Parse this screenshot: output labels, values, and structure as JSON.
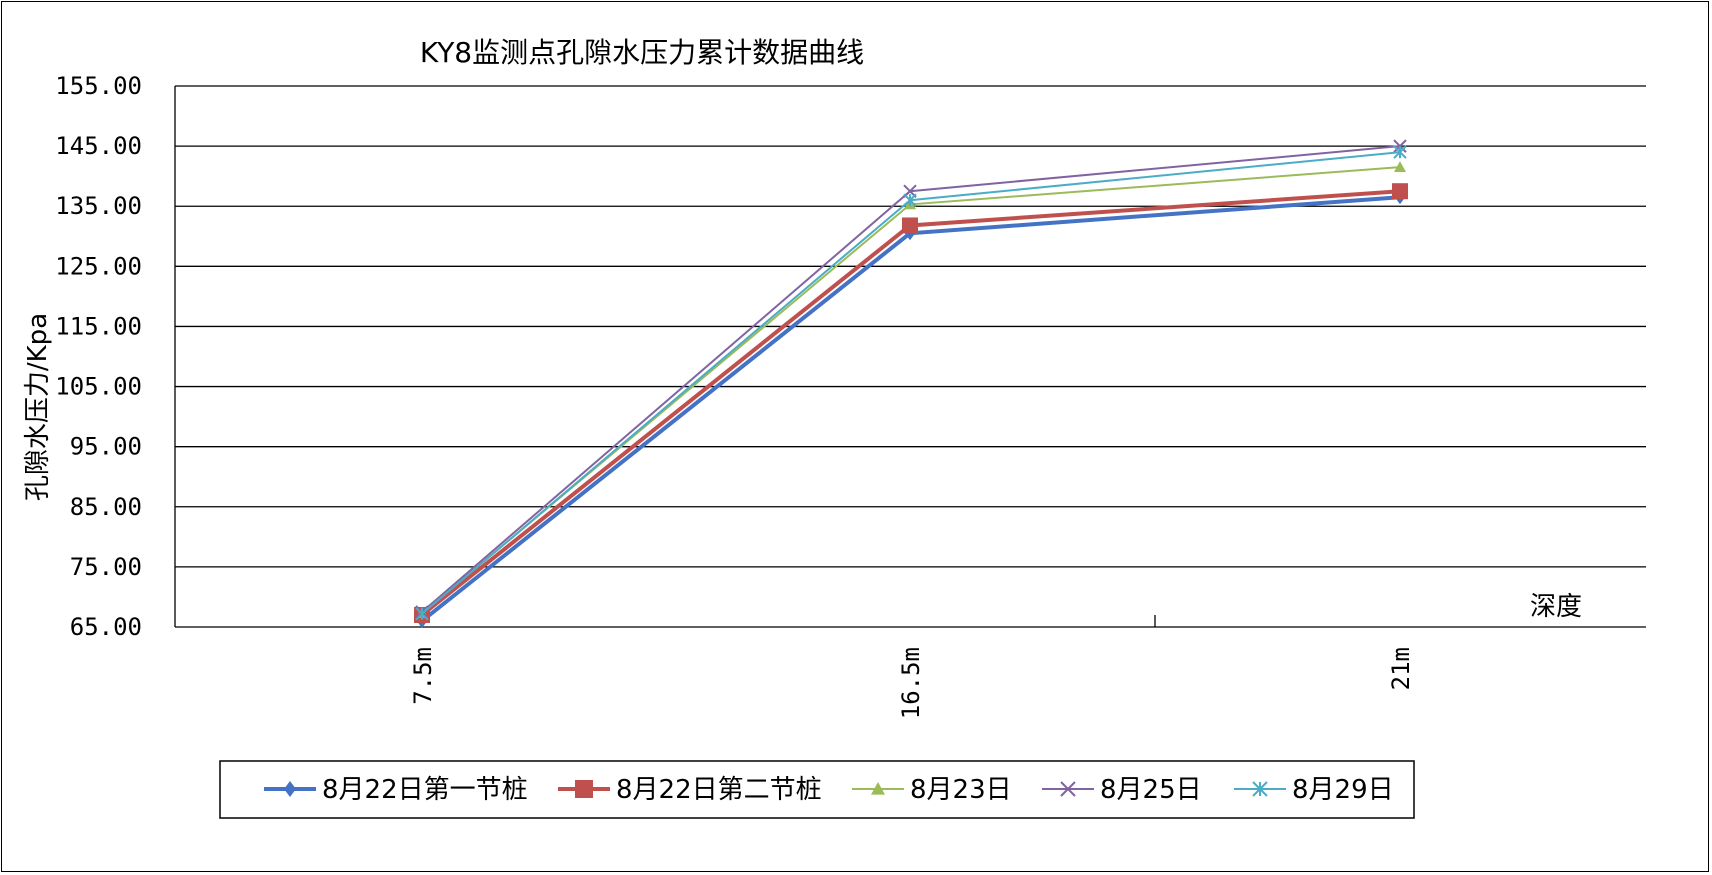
{
  "chart_data": {
    "type": "line",
    "title": "KY8监测点孔隙水压力累计数据曲线",
    "xlabel": "深度",
    "ylabel": "孔隙水压力/Kpa",
    "categories": [
      "7.5m",
      "16.5m",
      "21m"
    ],
    "ylim": [
      65,
      155
    ],
    "yticks": [
      "155.00",
      "145.00",
      "135.00",
      "125.00",
      "115.00",
      "105.00",
      "95.00",
      "85.00",
      "75.00",
      "65.00"
    ],
    "grid": true,
    "legend_position": "bottom",
    "series": [
      {
        "name": "8月22日第一节桩",
        "values": [
          66.0,
          130.5,
          136.5
        ],
        "color": "#4472C4",
        "marker": "diamond"
      },
      {
        "name": "8月22日第二节桩",
        "values": [
          67.0,
          131.8,
          137.5
        ],
        "color": "#C0504D",
        "marker": "square"
      },
      {
        "name": "8月23日",
        "values": [
          67.3,
          135.3,
          141.5
        ],
        "color": "#9BBB59",
        "marker": "triangle"
      },
      {
        "name": "8月25日",
        "values": [
          67.5,
          137.5,
          145.0
        ],
        "color": "#8064A2",
        "marker": "x"
      },
      {
        "name": "8月29日",
        "values": [
          67.2,
          136.0,
          144.0
        ],
        "color": "#4BACC6",
        "marker": "star"
      }
    ]
  }
}
